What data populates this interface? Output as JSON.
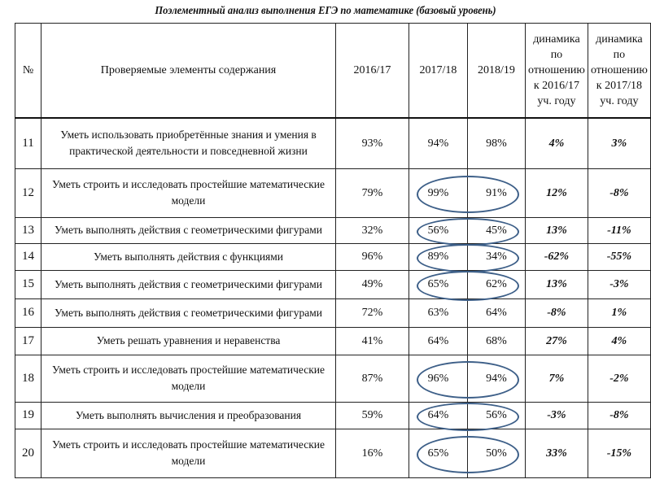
{
  "title": "Поэлементный анализ выполнения ЕГЭ по математике (базовый уровень)",
  "headers": [
    "№",
    "Проверяемые элементы содержания",
    "2016/17",
    "2017/18",
    "2018/19",
    "динамика по отношению к 2016/17 уч. году",
    "динамика по отношению к 2017/18 уч. году"
  ],
  "rows": [
    {
      "n": "11",
      "text": "Уметь использовать приобретённые знания и умения в практической деятельности и повседневной жизни",
      "y1": "93%",
      "y2": "94%",
      "y3": "98%",
      "d1": "4%",
      "d2": "3%",
      "circled": false
    },
    {
      "n": "12",
      "text": "Уметь строить и исследовать простейшие математические модели",
      "y1": "79%",
      "y2": "99%",
      "y3": "91%",
      "d1": "12%",
      "d2": "-8%",
      "circled": true
    },
    {
      "n": "13",
      "text": "Уметь выполнять действия с геометрическими фигурами",
      "y1": "32%",
      "y2": "56%",
      "y3": "45%",
      "d1": "13%",
      "d2": "-11%",
      "circled": true
    },
    {
      "n": "14",
      "text": "Уметь выполнять действия с функциями",
      "y1": "96%",
      "y2": "89%",
      "y3": "34%",
      "d1": "-62%",
      "d2": "-55%",
      "circled": true
    },
    {
      "n": "15",
      "text": "Уметь выполнять действия с геометрическими фигурами",
      "y1": "49%",
      "y2": "65%",
      "y3": "62%",
      "d1": "13%",
      "d2": "-3%",
      "circled": true
    },
    {
      "n": "16",
      "text": "Уметь выполнять действия с геометрическими фигурами",
      "y1": "72%",
      "y2": "63%",
      "y3": "64%",
      "d1": "-8%",
      "d2": "1%",
      "circled": false
    },
    {
      "n": "17",
      "text": "Уметь решать уравнения и неравенства",
      "y1": "41%",
      "y2": "64%",
      "y3": "68%",
      "d1": "27%",
      "d2": "4%",
      "circled": false
    },
    {
      "n": "18",
      "text": "Уметь строить и исследовать простейшие математические модели",
      "y1": "87%",
      "y2": "96%",
      "y3": "94%",
      "d1": "7%",
      "d2": "-2%",
      "circled": true
    },
    {
      "n": "19",
      "text": "Уметь выполнять вычисления и преобразования",
      "y1": "59%",
      "y2": "64%",
      "y3": "56%",
      "d1": "-3%",
      "d2": "-8%",
      "circled": true
    },
    {
      "n": "20",
      "text": "Уметь строить и исследовать простейшие математические модели",
      "y1": "16%",
      "y2": "65%",
      "y3": "50%",
      "d1": "33%",
      "d2": "-15%",
      "circled": true
    }
  ],
  "highlight_color": "#3d5f88"
}
